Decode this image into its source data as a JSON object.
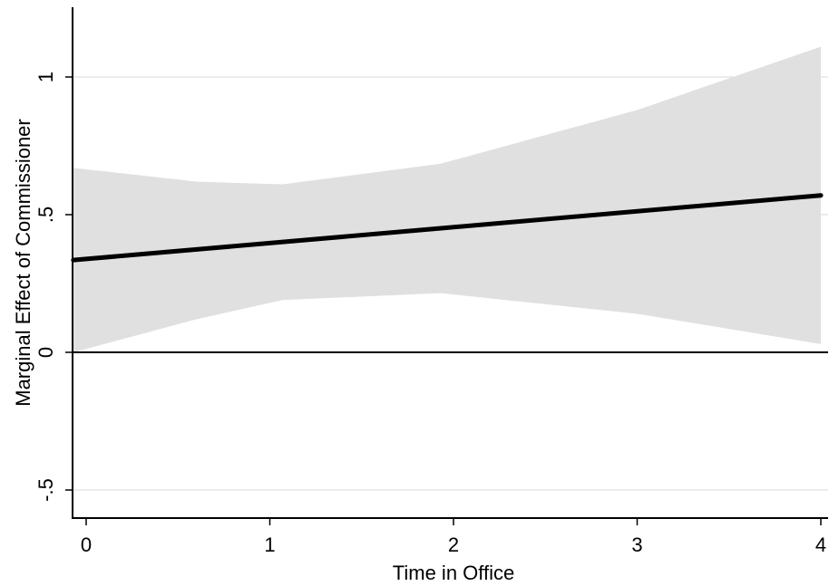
{
  "chart_data": {
    "type": "area",
    "title": "",
    "xlabel": "Time in Office",
    "ylabel": "Marginal Effect of Commissioner",
    "xlim": [
      -0.07,
      4.03
    ],
    "ylim": [
      -0.6,
      1.25
    ],
    "x_ticks": [
      0,
      1,
      2,
      3,
      4
    ],
    "x_tick_labels": [
      "0",
      "1",
      "2",
      "3",
      "4"
    ],
    "y_ticks": [
      -0.5,
      0,
      0.5,
      1
    ],
    "y_tick_labels": [
      "-.5",
      "0",
      ".5",
      "1"
    ],
    "grid": "horizontal",
    "reference_line_y": 0,
    "colors": {
      "band": "#e0e0e0",
      "line": "#000000",
      "grid": "#d9d9d9"
    },
    "series": [
      {
        "type": "line",
        "x": [
          -0.07,
          4.0
        ],
        "y": [
          0.335,
          0.57
        ]
      },
      {
        "type": "band",
        "x": [
          -0.07,
          0.6,
          1.07,
          1.93,
          3.0,
          4.0
        ],
        "upper": [
          0.67,
          0.62,
          0.61,
          0.685,
          0.88,
          1.11
        ],
        "lower": [
          0.0,
          0.12,
          0.19,
          0.215,
          0.14,
          0.03
        ]
      }
    ]
  }
}
